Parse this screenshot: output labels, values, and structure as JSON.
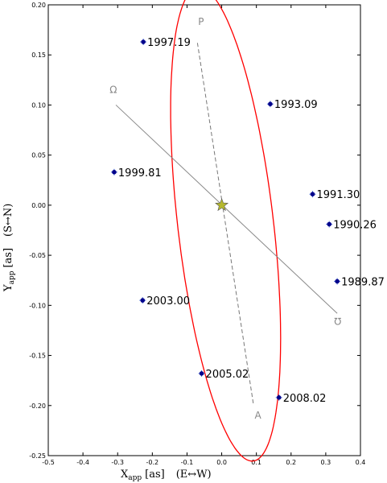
{
  "chart_data": {
    "type": "scatter",
    "xlabel": {
      "main": "X",
      "sub": "app",
      "unit": "[as]",
      "note": "(E↔W)"
    },
    "ylabel": {
      "main": "Y",
      "sub": "app",
      "unit": "[as]",
      "note": "(S↔N)"
    },
    "xlim": [
      -0.5,
      0.4
    ],
    "ylim": [
      -0.25,
      0.2
    ],
    "xticks": [
      -0.5,
      -0.4,
      -0.3,
      -0.2,
      -0.1,
      0.0,
      0.1,
      0.2,
      0.3,
      0.4
    ],
    "yticks": [
      -0.25,
      -0.2,
      -0.15,
      -0.1,
      -0.05,
      0.0,
      0.05,
      0.1,
      0.15,
      0.2
    ],
    "xtick_labels": [
      "-0.5",
      "-0.4",
      "-0.3",
      "-0.2",
      "-0.1",
      "0.0",
      "0.1",
      "0.2",
      "0.3",
      "0.4"
    ],
    "ytick_labels": [
      "-0.25",
      "-0.20",
      "-0.15",
      "-0.10",
      "-0.05",
      "0.00",
      "0.05",
      "0.10",
      "0.15",
      "0.20"
    ],
    "grid": false,
    "star": {
      "x": 0.0,
      "y": 0.0,
      "color": "#b5b82e"
    },
    "orbit_color": "#ff0000",
    "point_color": "#00008b",
    "points": [
      {
        "label": "1997.19",
        "x": -0.226,
        "y": 0.163
      },
      {
        "label": "1993.09",
        "x": 0.14,
        "y": 0.101
      },
      {
        "label": "1999.81",
        "x": -0.31,
        "y": 0.033
      },
      {
        "label": "1991.30",
        "x": 0.262,
        "y": 0.011
      },
      {
        "label": "1990.26",
        "x": 0.31,
        "y": -0.019
      },
      {
        "label": "1989.87",
        "x": 0.333,
        "y": -0.076
      },
      {
        "label": "2003.00",
        "x": -0.228,
        "y": -0.095
      },
      {
        "label": "2005.02",
        "x": -0.058,
        "y": -0.168
      },
      {
        "label": "2008.02",
        "x": 0.165,
        "y": -0.192
      }
    ],
    "periastron_label": "P",
    "apastron_label": "A",
    "ascending_node_label": "Ω",
    "descending_node_label": "℧"
  }
}
